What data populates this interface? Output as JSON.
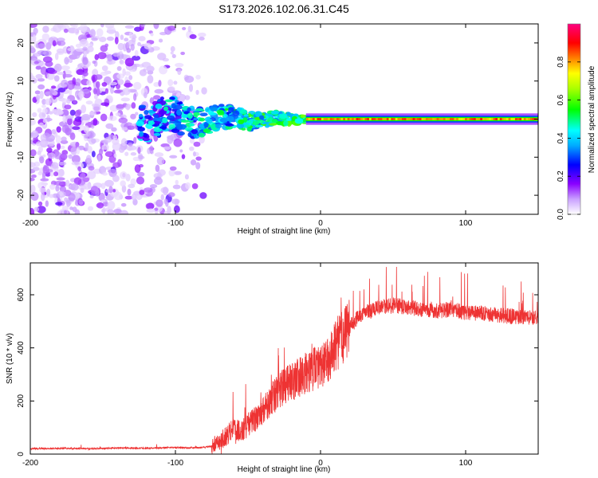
{
  "title": "S173.2026.102.06.31.C45",
  "chart_data": [
    {
      "type": "heatmap",
      "title": "S173.2026.102.06.31.C45",
      "xlabel": "Height of straight line (km)",
      "ylabel": "Frequency (Hz)",
      "xlim": [
        -200,
        150
      ],
      "ylim": [
        -25,
        25
      ],
      "xticks": [
        -200,
        -100,
        0,
        100
      ],
      "yticks": [
        -20,
        -10,
        0,
        10,
        20
      ],
      "colorbar": {
        "label": "Normalized spectral amplitude",
        "range": [
          0,
          1
        ],
        "ticks": [
          "0.0",
          "0.2",
          "0.4",
          "0.6",
          "0.8"
        ],
        "tick_values": [
          0,
          0.2,
          0.4,
          0.6,
          0.8
        ],
        "colormap": [
          "#ffffff",
          "#8a00ff",
          "#0000ff",
          "#00ffff",
          "#00ff00",
          "#ffff00",
          "#ff8000",
          "#ff0000",
          "#ff00c0"
        ]
      },
      "description_regions": [
        {
          "x_range": [
            -200,
            -80
          ],
          "freq_range": [
            -25,
            25
          ],
          "amplitude": 0.1,
          "pattern": "scattered noise"
        },
        {
          "x_range": [
            -125,
            -10
          ],
          "freq_range": [
            -5,
            4
          ],
          "amplitude": 0.3,
          "pattern": "wandering band"
        },
        {
          "x_range": [
            -10,
            150
          ],
          "freq_range": [
            -0.5,
            0.5
          ],
          "amplitude": 0.9,
          "pattern": "stable line at 0 Hz"
        }
      ]
    },
    {
      "type": "line",
      "xlabel": "Height of straight line (km)",
      "ylabel": "SNR (10 * v/v)",
      "xlim": [
        -200,
        150
      ],
      "ylim": [
        0,
        720
      ],
      "xticks": [
        -200,
        -100,
        0,
        100
      ],
      "yticks": [
        0,
        200,
        400,
        600
      ],
      "series": [
        {
          "name": "SNR",
          "color": "#ee3333",
          "x": [
            -200,
            -180,
            -160,
            -140,
            -120,
            -100,
            -90,
            -80,
            -75,
            -70,
            -65,
            -60,
            -55,
            -50,
            -45,
            -40,
            -35,
            -30,
            -25,
            -20,
            -15,
            -10,
            -5,
            0,
            5,
            10,
            15,
            20,
            25,
            30,
            40,
            50,
            60,
            70,
            80,
            90,
            100,
            110,
            120,
            130,
            140,
            150
          ],
          "values": [
            20,
            22,
            20,
            23,
            22,
            25,
            24,
            25,
            30,
            45,
            70,
            100,
            80,
            110,
            130,
            160,
            200,
            230,
            260,
            270,
            290,
            310,
            320,
            330,
            360,
            400,
            440,
            480,
            510,
            530,
            550,
            560,
            555,
            545,
            540,
            545,
            535,
            530,
            525,
            520,
            515,
            510
          ]
        }
      ]
    }
  ]
}
